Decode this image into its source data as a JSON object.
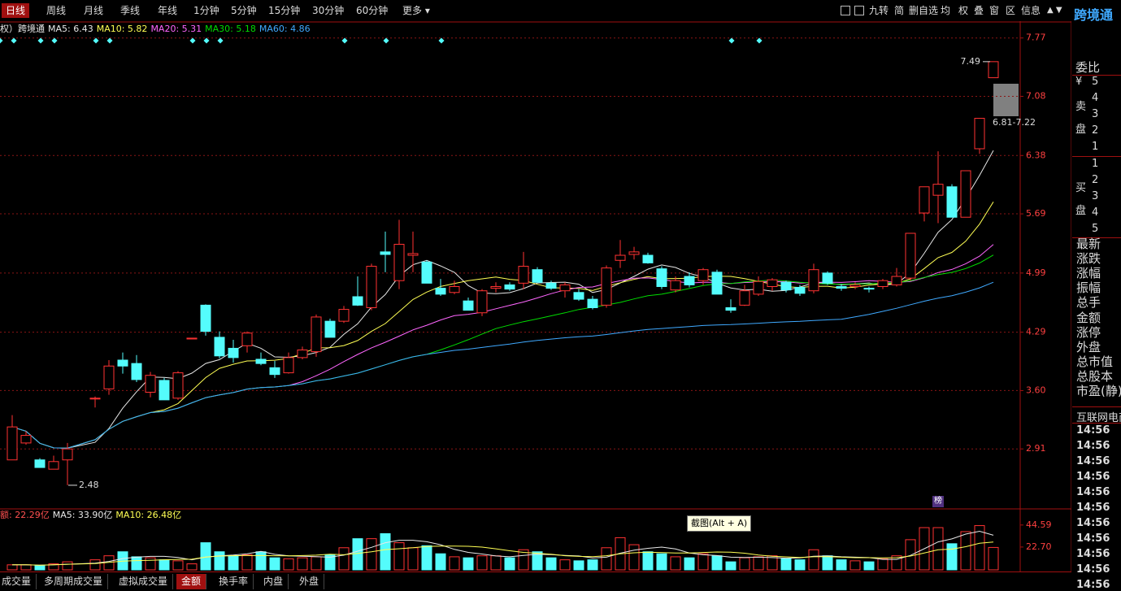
{
  "toolbar": {
    "periods": [
      "日线",
      "周线",
      "月线",
      "季线",
      "年线",
      "1分钟",
      "5分钟",
      "15分钟",
      "30分钟",
      "60分钟"
    ],
    "more": "更多",
    "tools": [
      "九转",
      "简",
      "删自选",
      "均",
      "权",
      "叠",
      "窗",
      "区",
      "信息"
    ]
  },
  "kline": {
    "legend_prefix": "权）跨境通",
    "legend": [
      {
        "text": "MA5: 6.43",
        "color": "#e8e8e8"
      },
      {
        "text": "MA10: 5.82",
        "color": "#ffff54"
      },
      {
        "text": "MA20: 5.31",
        "color": "#ff66ff"
      },
      {
        "text": "MA30: 5.18",
        "color": "#00dd00"
      },
      {
        "text": "MA60: 4.86",
        "color": "#3fa9ff"
      }
    ],
    "ylim": [
      2.21,
      7.95
    ],
    "yticks": [
      7.77,
      7.08,
      6.38,
      5.69,
      4.99,
      4.29,
      {
        "value": 3.6,
        "label": "3.60"
      },
      2.91
    ],
    "up_color": "#ff3232",
    "down_color": "#54fcfc",
    "candles": [
      [
        2.78,
        3.31,
        2.78,
        3.17
      ],
      [
        2.98,
        3.12,
        2.96,
        3.07
      ],
      [
        2.78,
        2.8,
        2.69,
        2.69
      ],
      [
        2.67,
        2.83,
        2.67,
        2.76
      ],
      [
        2.78,
        2.98,
        2.48,
        2.91
      ],
      null,
      [
        3.5,
        3.53,
        3.4,
        3.51
      ],
      [
        3.62,
        3.96,
        3.55,
        3.89
      ],
      [
        3.96,
        4.05,
        3.8,
        3.89
      ],
      [
        3.92,
        4.02,
        3.7,
        3.73
      ],
      [
        3.58,
        3.82,
        3.52,
        3.78
      ],
      [
        3.72,
        3.75,
        3.49,
        3.49
      ],
      [
        3.51,
        3.83,
        3.49,
        3.81
      ],
      [
        4.21,
        4.22,
        4.21,
        4.22
      ],
      [
        4.61,
        4.62,
        4.25,
        4.3
      ],
      [
        4.23,
        4.3,
        3.98,
        4.01
      ],
      [
        4.1,
        4.2,
        3.93,
        3.99
      ],
      [
        4.13,
        4.3,
        4.05,
        4.28
      ],
      [
        3.97,
        4.05,
        3.9,
        3.92
      ],
      [
        3.87,
        3.95,
        3.75,
        3.79
      ],
      [
        3.81,
        4.05,
        3.8,
        3.99
      ],
      [
        3.99,
        4.12,
        3.97,
        4.08
      ],
      [
        4.06,
        4.5,
        4.0,
        4.47
      ],
      [
        4.42,
        4.45,
        4.23,
        4.23
      ],
      [
        4.42,
        4.6,
        4.4,
        4.56
      ],
      [
        4.71,
        4.95,
        4.6,
        4.61
      ],
      [
        4.58,
        5.1,
        4.55,
        5.07
      ],
      [
        5.24,
        5.48,
        5.0,
        5.21
      ],
      [
        4.9,
        5.62,
        4.8,
        5.33
      ],
      [
        5.2,
        5.48,
        5.0,
        5.22
      ],
      [
        5.12,
        5.14,
        4.87,
        4.87
      ],
      [
        4.81,
        4.92,
        4.72,
        4.74
      ],
      [
        4.76,
        4.9,
        4.74,
        4.83
      ],
      [
        4.66,
        4.7,
        4.55,
        4.55
      ],
      [
        4.52,
        4.8,
        4.48,
        4.78
      ],
      [
        4.81,
        4.88,
        4.76,
        4.83
      ],
      [
        4.85,
        4.88,
        4.78,
        4.8
      ],
      [
        4.87,
        5.24,
        4.8,
        5.07
      ],
      [
        5.03,
        5.06,
        4.88,
        4.88
      ],
      [
        4.87,
        4.9,
        4.79,
        4.81
      ],
      [
        4.78,
        4.88,
        4.7,
        4.85
      ],
      [
        4.76,
        4.8,
        4.66,
        4.68
      ],
      [
        4.68,
        4.72,
        4.56,
        4.58
      ],
      [
        4.61,
        5.08,
        4.58,
        5.05
      ],
      [
        5.14,
        5.38,
        5.05,
        5.2
      ],
      [
        5.21,
        5.3,
        5.15,
        5.24
      ],
      [
        5.2,
        5.23,
        5.1,
        5.11
      ],
      [
        5.04,
        5.07,
        4.8,
        4.83
      ],
      [
        4.79,
        4.95,
        4.76,
        4.9
      ],
      [
        4.95,
        5.0,
        4.82,
        4.85
      ],
      [
        4.9,
        5.05,
        4.85,
        5.03
      ],
      [
        5.0,
        5.03,
        4.74,
        4.74
      ],
      [
        4.58,
        4.68,
        4.52,
        4.55
      ],
      [
        4.61,
        4.85,
        4.6,
        4.78
      ],
      [
        4.74,
        4.95,
        4.72,
        4.89
      ],
      [
        4.83,
        4.93,
        4.78,
        4.91
      ],
      [
        4.88,
        4.9,
        4.76,
        4.79
      ],
      [
        4.82,
        4.85,
        4.72,
        4.75
      ],
      [
        4.78,
        5.1,
        4.75,
        5.03
      ],
      [
        4.99,
        5.01,
        4.85,
        4.87
      ],
      [
        4.83,
        4.86,
        4.78,
        4.81
      ],
      [
        4.83,
        4.88,
        4.8,
        4.85
      ],
      [
        4.81,
        4.83,
        4.76,
        4.8
      ],
      [
        4.83,
        4.92,
        4.8,
        4.9
      ],
      [
        4.85,
        5.05,
        4.83,
        4.95
      ],
      [
        4.93,
        5.46,
        4.9,
        5.46
      ],
      [
        5.7,
        6.01,
        5.6,
        6.01
      ],
      [
        5.91,
        6.43,
        5.58,
        6.04
      ],
      [
        6.01,
        6.04,
        5.65,
        5.65
      ],
      [
        5.65,
        6.2,
        5.65,
        6.2
      ],
      [
        6.46,
        6.82,
        6.4,
        6.82
      ],
      [
        7.3,
        7.49,
        7.3,
        7.49
      ]
    ],
    "high_label": "7.49",
    "low_label": "2.48",
    "limit_range": "6.81-7.22"
  },
  "volume": {
    "legend": [
      {
        "text": "额: 22.29亿",
        "color": "#ff5050"
      },
      {
        "text": "MA5: 33.90亿",
        "color": "#e8e8e8"
      },
      {
        "text": "MA10: 26.48亿",
        "color": "#ffff54"
      }
    ],
    "ylim": [
      0,
      59
    ],
    "yticks": [
      44.59,
      {
        "value": 22.7,
        "label": "22.70"
      }
    ],
    "values": [
      5,
      5,
      4,
      6,
      8,
      null,
      10,
      14,
      18,
      13,
      12,
      10,
      9,
      6,
      27,
      18,
      14,
      15,
      18,
      12,
      11,
      12,
      13,
      15,
      22,
      31,
      31,
      36,
      27,
      22,
      24,
      16,
      13,
      12,
      14,
      14,
      12,
      20,
      18,
      12,
      10,
      9,
      10,
      22,
      32,
      25,
      18,
      16,
      13,
      12,
      16,
      14,
      8,
      12,
      13,
      14,
      11,
      10,
      20,
      14,
      10,
      9,
      8,
      11,
      14,
      30,
      42,
      42,
      26,
      38,
      44,
      22.29
    ]
  },
  "quote_panel": {
    "stock": "跨境通",
    "ratio": "委比",
    "sell_labels": [
      "¥",
      "卖",
      "盘"
    ],
    "sell_levels": [
      5,
      4,
      3,
      2,
      1
    ],
    "buy_labels": [
      "买",
      "盘"
    ],
    "buy_levels": [
      1,
      2,
      3,
      4,
      5
    ],
    "fields": [
      "最新",
      "涨跌",
      "涨幅",
      "振幅",
      "总手",
      "金额",
      "涨停",
      "外盘",
      "总市值",
      "总股本",
      "市盈(静)"
    ],
    "sector": "互联网电商",
    "times": [
      "14:56",
      "14:56",
      "14:56",
      "14:56",
      "14:56",
      "14:56",
      "14:56",
      "14:56",
      "14:56",
      "14:56",
      "14:56"
    ]
  },
  "bottom_tabs": [
    "成交量",
    "多周期成交量",
    "虚拟成交量",
    "金额",
    "换手率",
    "内盘",
    "外盘"
  ],
  "tooltip": "截图(Alt + A)",
  "badge": "榜"
}
